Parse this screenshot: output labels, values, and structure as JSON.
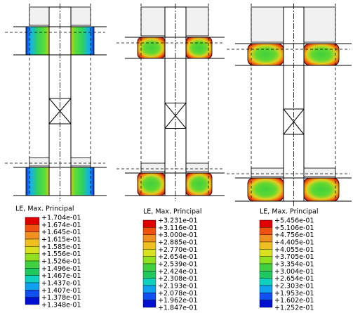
{
  "panels": [
    {
      "legend": {
        "title": "LE, Max. Principal",
        "labels": [
          "+1.704e-01",
          "+1.674e-01",
          "+1.645e-01",
          "+1.615e-01",
          "+1.585e-01",
          "+1.556e-01",
          "+1.526e-01",
          "+1.496e-01",
          "+1.467e-01",
          "+1.437e-01",
          "+1.407e-01",
          "+1.378e-01",
          "+1.348e-01"
        ]
      }
    },
    {
      "legend": {
        "title": "LE, Max. Principal",
        "labels": [
          "+3.231e-01",
          "+3.116e-01",
          "+3.000e-01",
          "+2.885e-01",
          "+2.770e-01",
          "+2.654e-01",
          "+2.539e-01",
          "+2.424e-01",
          "+2.308e-01",
          "+2.193e-01",
          "+2.078e-01",
          "+1.962e-01",
          "+1.847e-01"
        ]
      }
    },
    {
      "legend": {
        "title": "LE, Max. Principal",
        "labels": [
          "+5.456e-01",
          "+5.106e-01",
          "+4.756e-01",
          "+4.405e-01",
          "+4.055e-01",
          "+3.705e-01",
          "+3.354e-01",
          "+3.004e-01",
          "+2.654e-01",
          "+2.303e-01",
          "+1.953e-01",
          "+1.602e-01",
          "+1.252e-01"
        ]
      }
    }
  ]
}
